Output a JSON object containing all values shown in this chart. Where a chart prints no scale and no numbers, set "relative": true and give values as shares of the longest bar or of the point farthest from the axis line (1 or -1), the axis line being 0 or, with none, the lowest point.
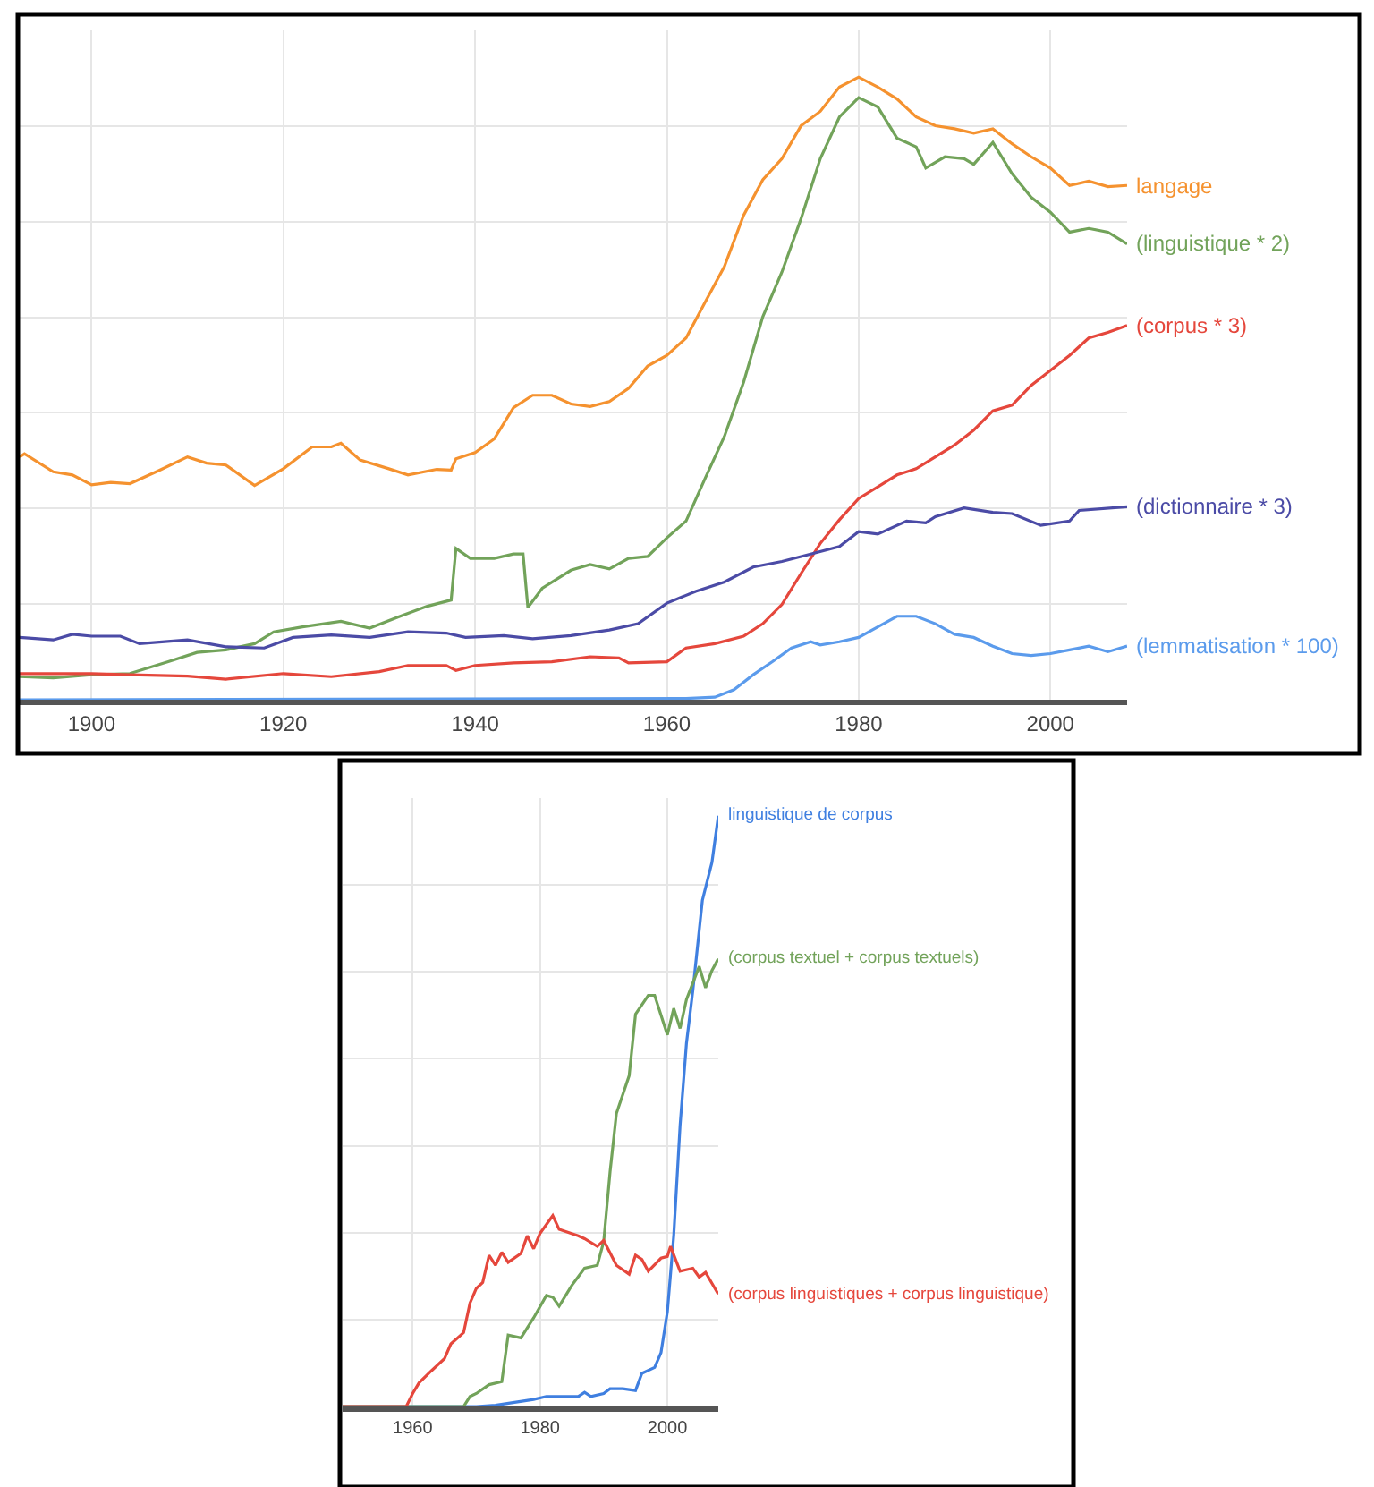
{
  "chart_data": [
    {
      "type": "line",
      "relative": true,
      "grid": true,
      "xlim": [
        1892.5,
        2008
      ],
      "xticks": [
        1900,
        1920,
        1940,
        1960,
        1980,
        2000
      ],
      "series": [
        {
          "name": "langage",
          "color": "#f5922f",
          "x": [
            1892.5,
            1893,
            1896,
            1898,
            1900,
            1902,
            1904,
            1907,
            1910,
            1912,
            1914,
            1917,
            1920,
            1923,
            1925,
            1926,
            1928,
            1931,
            1933,
            1936,
            1937.5,
            1938,
            1940,
            1942,
            1944,
            1946,
            1948,
            1950,
            1952,
            1954,
            1956,
            1958,
            1960,
            1962,
            1964,
            1966,
            1968,
            1970,
            1972,
            1974,
            1976,
            1978,
            1980,
            1982,
            1984,
            1986,
            1988,
            1990,
            1992,
            1994,
            1996,
            1998,
            2000,
            2002,
            2004,
            2006,
            2008
          ],
          "values": [
            0.39,
            0.395,
            0.366,
            0.361,
            0.345,
            0.349,
            0.347,
            0.368,
            0.39,
            0.38,
            0.377,
            0.344,
            0.371,
            0.406,
            0.406,
            0.412,
            0.385,
            0.371,
            0.361,
            0.37,
            0.369,
            0.387,
            0.397,
            0.419,
            0.469,
            0.489,
            0.489,
            0.475,
            0.471,
            0.479,
            0.5,
            0.536,
            0.553,
            0.581,
            0.639,
            0.696,
            0.778,
            0.835,
            0.869,
            0.922,
            0.945,
            0.984,
            1.0,
            0.984,
            0.965,
            0.936,
            0.922,
            0.917,
            0.91,
            0.917,
            0.893,
            0.872,
            0.854,
            0.826,
            0.833,
            0.824,
            0.826
          ]
        },
        {
          "name": "(linguistique * 2)",
          "color": "#72a35a",
          "x": [
            1892.5,
            1896,
            1900,
            1904,
            1908,
            1911,
            1914,
            1917,
            1919,
            1922,
            1926,
            1929,
            1932,
            1935,
            1937.5,
            1938,
            1939.5,
            1942,
            1944,
            1945,
            1945.5,
            1947,
            1950,
            1952,
            1954,
            1956,
            1958,
            1960,
            1962,
            1964,
            1966,
            1968,
            1970,
            1972,
            1974,
            1976,
            1978,
            1980,
            1982,
            1984,
            1986,
            1987,
            1989,
            1991,
            1992,
            1994,
            1996,
            1998,
            2000,
            2002,
            2004,
            2006,
            2008
          ],
          "values": [
            0.037,
            0.035,
            0.04,
            0.042,
            0.061,
            0.076,
            0.08,
            0.09,
            0.109,
            0.117,
            0.126,
            0.115,
            0.133,
            0.15,
            0.16,
            0.243,
            0.227,
            0.227,
            0.234,
            0.234,
            0.148,
            0.179,
            0.208,
            0.217,
            0.21,
            0.227,
            0.23,
            0.26,
            0.287,
            0.356,
            0.423,
            0.51,
            0.615,
            0.687,
            0.773,
            0.869,
            0.936,
            0.967,
            0.952,
            0.902,
            0.888,
            0.854,
            0.872,
            0.869,
            0.86,
            0.895,
            0.845,
            0.807,
            0.783,
            0.751,
            0.757,
            0.751,
            0.732
          ]
        },
        {
          "name": "(corpus * 3)",
          "color": "#e5473c",
          "x": [
            1892.5,
            1900,
            1904,
            1910,
            1914,
            1920,
            1925,
            1930,
            1933,
            1937,
            1938,
            1940,
            1944,
            1948,
            1952,
            1955,
            1956,
            1960,
            1962,
            1965,
            1968,
            1970,
            1972,
            1974,
            1976,
            1978,
            1980,
            1982,
            1984,
            1986,
            1988,
            1990,
            1992,
            1994,
            1996,
            1998,
            2000,
            2002,
            2004,
            2006,
            2008
          ],
          "values": [
            0.042,
            0.042,
            0.04,
            0.038,
            0.033,
            0.042,
            0.037,
            0.045,
            0.055,
            0.055,
            0.047,
            0.055,
            0.059,
            0.061,
            0.069,
            0.067,
            0.059,
            0.061,
            0.083,
            0.09,
            0.102,
            0.122,
            0.153,
            0.203,
            0.251,
            0.289,
            0.323,
            0.342,
            0.361,
            0.371,
            0.39,
            0.409,
            0.433,
            0.464,
            0.473,
            0.505,
            0.529,
            0.553,
            0.581,
            0.59,
            0.601
          ]
        },
        {
          "name": "(dictionnaire * 3)",
          "color": "#4b4ba6",
          "x": [
            1892.5,
            1896,
            1898,
            1900,
            1903,
            1905,
            1910,
            1914,
            1918,
            1921,
            1925,
            1929,
            1933,
            1937,
            1939,
            1943,
            1946,
            1950,
            1954,
            1957,
            1960,
            1963,
            1966,
            1969,
            1972,
            1975,
            1978,
            1980,
            1982,
            1985,
            1987,
            1988,
            1991,
            1994,
            1996,
            1999,
            2002,
            2003,
            2008
          ],
          "values": [
            0.1,
            0.096,
            0.105,
            0.102,
            0.102,
            0.09,
            0.096,
            0.085,
            0.083,
            0.1,
            0.104,
            0.1,
            0.109,
            0.107,
            0.1,
            0.103,
            0.098,
            0.103,
            0.112,
            0.122,
            0.155,
            0.174,
            0.189,
            0.213,
            0.222,
            0.234,
            0.246,
            0.27,
            0.266,
            0.287,
            0.284,
            0.294,
            0.308,
            0.301,
            0.299,
            0.28,
            0.287,
            0.304,
            0.31
          ]
        },
        {
          "name": "(lemmatisation * 100)",
          "color": "#5b9bec",
          "x": [
            1892.5,
            1962,
            1965,
            1967,
            1969,
            1971,
            1973,
            1975,
            1976,
            1978,
            1980,
            1982,
            1984,
            1986,
            1988,
            1990,
            1992,
            1994,
            1996,
            1998,
            2000,
            2002,
            2004,
            2006,
            2008
          ],
          "values": [
            0,
            0.002,
            0.004,
            0.016,
            0.04,
            0.061,
            0.083,
            0.093,
            0.088,
            0.093,
            0.1,
            0.117,
            0.134,
            0.134,
            0.122,
            0.105,
            0.1,
            0.086,
            0.074,
            0.071,
            0.074,
            0.08,
            0.086,
            0.077,
            0.086
          ]
        }
      ]
    },
    {
      "type": "line",
      "relative": true,
      "grid": true,
      "xlim": [
        1949,
        2008
      ],
      "xticks": [
        1960,
        1980,
        2000
      ],
      "series": [
        {
          "name": "linguistique de corpus",
          "color": "#3f7fe0",
          "x": [
            1949,
            1970,
            1973,
            1976,
            1979,
            1981,
            1986,
            1987,
            1988,
            1990,
            1991,
            1993,
            1995,
            1996,
            1998,
            1999,
            2000,
            2001,
            2002,
            2003,
            2004,
            2005.5,
            2007,
            2008
          ],
          "values": [
            0,
            0,
            0.002,
            0.007,
            0.012,
            0.017,
            0.017,
            0.024,
            0.017,
            0.022,
            0.03,
            0.03,
            0.027,
            0.056,
            0.066,
            0.091,
            0.16,
            0.289,
            0.476,
            0.615,
            0.704,
            0.857,
            0.921,
            1.0
          ]
        },
        {
          "name": "(corpus textuel + corpus textuels)",
          "color": "#72a35a",
          "x": [
            1949,
            1968,
            1969,
            1970,
            1972,
            1974,
            1975,
            1977,
            1979,
            1981,
            1982,
            1983,
            1985,
            1987,
            1989,
            1990,
            1991,
            1992,
            1994,
            1995,
            1997,
            1998,
            2000,
            2001,
            2002,
            2003,
            2005,
            2006,
            2007,
            2008
          ],
          "values": [
            0,
            0,
            0.017,
            0.022,
            0.037,
            0.042,
            0.121,
            0.116,
            0.15,
            0.188,
            0.185,
            0.17,
            0.205,
            0.234,
            0.239,
            0.279,
            0.397,
            0.496,
            0.56,
            0.664,
            0.696,
            0.696,
            0.629,
            0.674,
            0.64,
            0.689,
            0.745,
            0.709,
            0.738,
            0.758
          ]
        },
        {
          "name": "(corpus linguistiques + corpus linguistique)",
          "color": "#e5473c",
          "x": [
            1949,
            1959,
            1960,
            1961,
            1963,
            1965,
            1966,
            1968,
            1969,
            1970,
            1971,
            1972,
            1973,
            1974,
            1975,
            1977,
            1978,
            1979,
            1980,
            1982,
            1983,
            1986,
            1987,
            1989,
            1990,
            1992,
            1994,
            1995,
            1996,
            1997,
            1999,
            2000,
            2000.5,
            2002,
            2004,
            2005,
            2006,
            2008
          ],
          "values": [
            0,
            0,
            0.022,
            0.04,
            0.061,
            0.081,
            0.106,
            0.125,
            0.175,
            0.2,
            0.21,
            0.256,
            0.239,
            0.261,
            0.244,
            0.259,
            0.289,
            0.267,
            0.293,
            0.323,
            0.3,
            0.289,
            0.284,
            0.271,
            0.281,
            0.239,
            0.224,
            0.256,
            0.249,
            0.229,
            0.251,
            0.254,
            0.271,
            0.229,
            0.234,
            0.219,
            0.227,
            0.19
          ]
        }
      ]
    }
  ]
}
